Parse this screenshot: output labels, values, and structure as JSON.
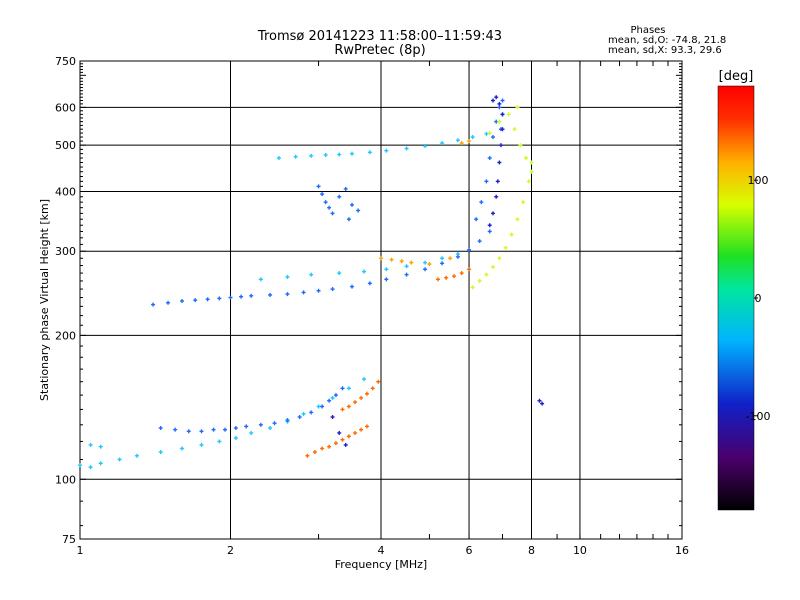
{
  "header": {
    "title_line1": "Tromsø 20141223 11:58:00–11:59:43",
    "title_line2": "RwPretec (8p)"
  },
  "stats": {
    "heading": "Phases",
    "line_o": "mean, sd,O: -74.8, 21.8",
    "line_x": "mean, sd,X:  93.3, 29.6"
  },
  "chart_data": {
    "type": "scatter",
    "xlabel": "Frequency [MHz]",
    "ylabel": "Stationary phase Virtual Height [km]",
    "x_scale": "log",
    "y_scale": "log",
    "xlim": [
      1,
      16
    ],
    "ylim": [
      75,
      750
    ],
    "grid": true,
    "x_ticks": [
      1,
      2,
      4,
      6,
      8,
      10,
      16
    ],
    "x_tick_labels": [
      "1",
      "2",
      "4",
      "6",
      "8",
      "10",
      "16"
    ],
    "x_gridlines": [
      2,
      4,
      6,
      8,
      10
    ],
    "y_ticks": [
      75,
      100,
      200,
      300,
      400,
      500,
      600,
      750
    ],
    "y_tick_labels": [
      "75",
      "100",
      "200",
      "300",
      "400",
      "500",
      "600",
      "750"
    ],
    "y_gridlines": [
      100,
      200,
      300,
      400,
      500,
      600
    ],
    "colorbar": {
      "label": "[deg]",
      "range": [
        -180,
        180
      ],
      "ticks": [
        100,
        0,
        -100
      ],
      "tick_labels": [
        "100",
        "0",
        "-100"
      ]
    },
    "series": [
      {
        "color": "#1ec8ff",
        "phase_deg": -60,
        "x": [
          1.0,
          1.05,
          1.1,
          1.2,
          1.3,
          1.45,
          1.6,
          1.75,
          1.9,
          2.05,
          2.2,
          2.4,
          2.6,
          2.8,
          3.0,
          3.2,
          3.45,
          3.7,
          2.5,
          2.7,
          2.9,
          3.1,
          3.3,
          3.5,
          3.8,
          4.1,
          4.5,
          4.9,
          5.3,
          5.7,
          6.1,
          6.5,
          2.3,
          2.6,
          2.9,
          3.3,
          3.7,
          4.1,
          4.5,
          4.9,
          5.3,
          5.7,
          1.05,
          1.1
        ],
        "y": [
          107,
          106,
          108,
          110,
          112,
          114,
          116,
          118,
          120,
          122,
          125,
          128,
          132,
          137,
          142,
          148,
          155,
          162,
          470,
          473,
          475,
          477,
          478,
          480,
          483,
          487,
          492,
          498,
          505,
          512,
          520,
          528,
          262,
          265,
          268,
          270,
          272,
          275,
          279,
          284,
          290,
          296,
          118,
          117
        ]
      },
      {
        "color": "#1e6bff",
        "phase_deg": -95,
        "x": [
          1.45,
          1.55,
          1.65,
          1.75,
          1.85,
          1.95,
          2.05,
          2.15,
          2.3,
          2.45,
          2.6,
          2.75,
          2.9,
          3.05,
          3.15,
          3.25,
          3.35,
          1.4,
          1.5,
          1.6,
          1.7,
          1.8,
          1.9,
          2.0,
          2.1,
          2.2,
          2.4,
          2.6,
          2.8,
          3.0,
          3.2,
          3.5,
          3.8,
          4.1,
          4.5,
          4.9,
          5.3,
          5.7,
          6.0,
          6.3,
          6.6,
          3.0,
          3.05,
          3.1,
          3.15,
          3.2,
          3.3,
          3.4,
          3.5,
          3.6,
          3.45,
          6.2,
          6.35,
          6.5,
          6.6,
          6.7,
          6.8,
          6.9,
          7.0,
          7.0,
          6.95
        ],
        "y": [
          128,
          127,
          126,
          126,
          127,
          127,
          128,
          129,
          130,
          131,
          133,
          135,
          138,
          142,
          146,
          150,
          155,
          232,
          234,
          236,
          237,
          238,
          239,
          240,
          241,
          242,
          243,
          244,
          246,
          248,
          250,
          253,
          257,
          262,
          268,
          275,
          283,
          292,
          302,
          315,
          330,
          410,
          395,
          380,
          370,
          360,
          390,
          405,
          375,
          365,
          350,
          350,
          380,
          420,
          470,
          520,
          560,
          600,
          620,
          580,
          540
        ]
      },
      {
        "color": "#2020c8",
        "phase_deg": -125,
        "x": [
          6.6,
          6.7,
          6.8,
          6.85,
          6.9,
          6.95,
          7.0,
          7.0,
          6.9,
          6.8,
          6.7,
          3.2,
          3.3,
          3.4,
          8.3,
          8.4
        ],
        "y": [
          340,
          360,
          390,
          420,
          460,
          500,
          540,
          580,
          610,
          630,
          620,
          135,
          125,
          118,
          146,
          144
        ]
      },
      {
        "color": "#ff6a00",
        "phase_deg": 70,
        "x": [
          2.85,
          2.95,
          3.05,
          3.15,
          3.25,
          3.35,
          3.45,
          3.55,
          3.65,
          3.75,
          3.35,
          3.45,
          3.55,
          3.65,
          3.75,
          3.85,
          3.95,
          5.2,
          5.4,
          5.6,
          5.8,
          6.0
        ],
        "y": [
          112,
          114,
          116,
          117,
          119,
          121,
          123,
          125,
          127,
          129,
          140,
          142,
          145,
          148,
          151,
          155,
          160,
          262,
          264,
          266,
          270,
          275
        ]
      },
      {
        "color": "#c8ff1e",
        "phase_deg": 95,
        "x": [
          6.1,
          6.3,
          6.5,
          6.7,
          6.9,
          7.1,
          7.3,
          7.5,
          7.7,
          7.9,
          8.0,
          7.4,
          7.6,
          7.8,
          8.0,
          6.6,
          6.9,
          7.2,
          7.5
        ],
        "y": [
          252,
          260,
          268,
          278,
          290,
          305,
          325,
          350,
          380,
          420,
          460,
          540,
          500,
          470,
          440,
          530,
          560,
          580,
          600
        ]
      },
      {
        "color": "#ffa000",
        "phase_deg": 120,
        "x": [
          4.0,
          4.2,
          4.4,
          4.6,
          5.0,
          5.5,
          5.8,
          6.0
        ],
        "y": [
          290,
          288,
          286,
          284,
          282,
          290,
          505,
          510
        ]
      }
    ]
  }
}
